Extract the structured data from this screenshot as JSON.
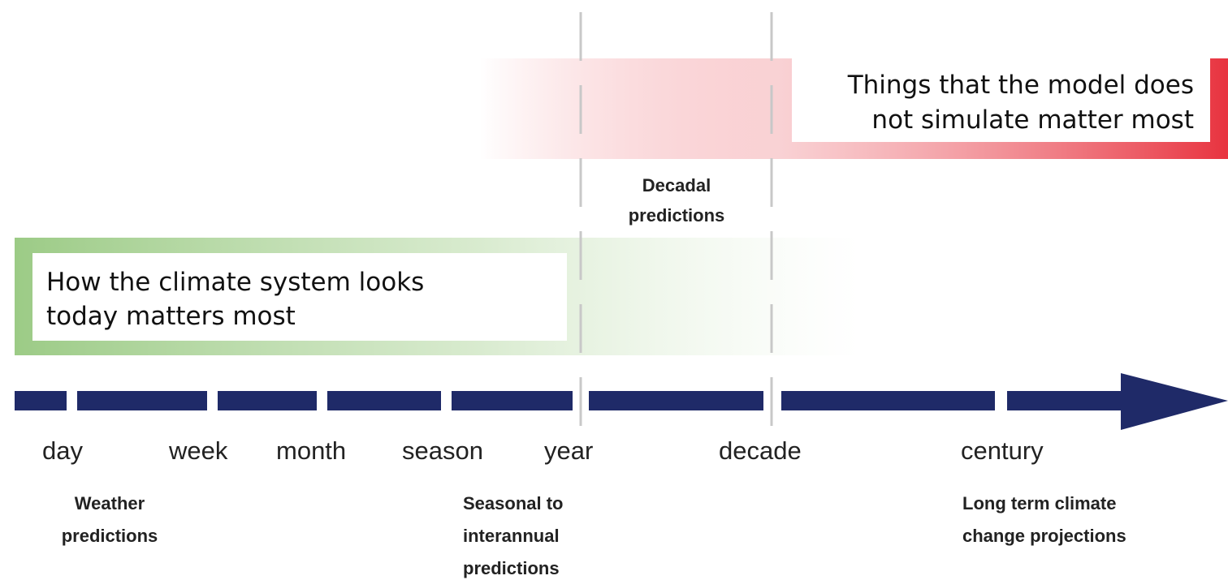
{
  "top_box": {
    "lines": [
      "Things that the model does",
      "not simulate matter most"
    ]
  },
  "bottom_box": {
    "lines": [
      "How the climate system looks",
      "today matters most"
    ]
  },
  "timeline": {
    "labels": [
      "day",
      "week",
      "month",
      "season",
      "year",
      "decade",
      "century"
    ]
  },
  "predictions": [
    {
      "lines": [
        "Weather",
        "predictions"
      ]
    },
    {
      "lines": [
        "Seasonal to",
        "interannual",
        "predictions"
      ]
    },
    {
      "lines": [
        "Decadal",
        "predictions"
      ]
    },
    {
      "lines": [
        "Long term climate",
        "change projections"
      ]
    }
  ]
}
